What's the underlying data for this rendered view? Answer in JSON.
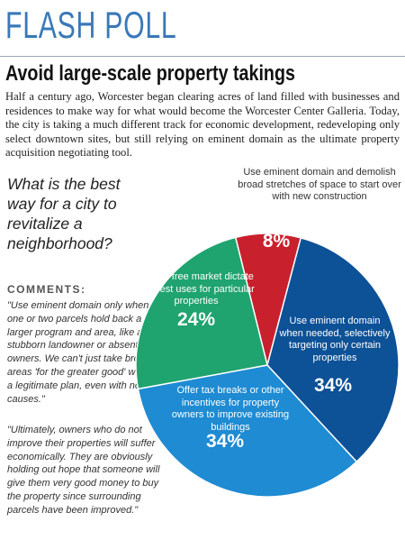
{
  "header": {
    "kicker": "FLASH POLL",
    "title": "Avoid large-scale property takings"
  },
  "intro": "Half a century ago, Worcester began clearing acres of land filled with businesses and residences to make way for what would become the Worcester Center Galleria. Today, the city is taking a much different track for economic development, redeveloping only select downtown sites, but still relying on eminent domain as the ultimate property acquisition negotiating tool.",
  "comments": {
    "heading": "COMMENTS:",
    "quotes": [
      "\"Use eminent domain only when one or two parcels hold back a larger program and area, like a stubborn landowner or absentee owners. We can't just take broad areas 'for the greater good' without a legitimate plan, even with noble causes.\"",
      "\"Ultimately, owners who do not improve their properties will suffer economically. They are obviously holding out hope that someone will give them very good money to buy the property since surrounding parcels have been improved.\""
    ]
  },
  "chart_data": {
    "type": "pie",
    "title": "What is the best way for a city to revitalize a neighborhood?",
    "categories": [
      "Use eminent domain and demolish broad stretches of space to start over with new construction",
      "Use eminent domain when needed, selectively targeting only certain properties",
      "Offer tax breaks or other incentives for property owners to improve existing buildings",
      "Let the free market dictate the best uses for particular properties"
    ],
    "values": [
      8,
      34,
      34,
      24
    ],
    "value_labels": [
      "8%",
      "34%",
      "34%",
      "24%"
    ],
    "colors": [
      "#c9202e",
      "#0d5196",
      "#1e8bd3",
      "#1fa36f"
    ]
  }
}
